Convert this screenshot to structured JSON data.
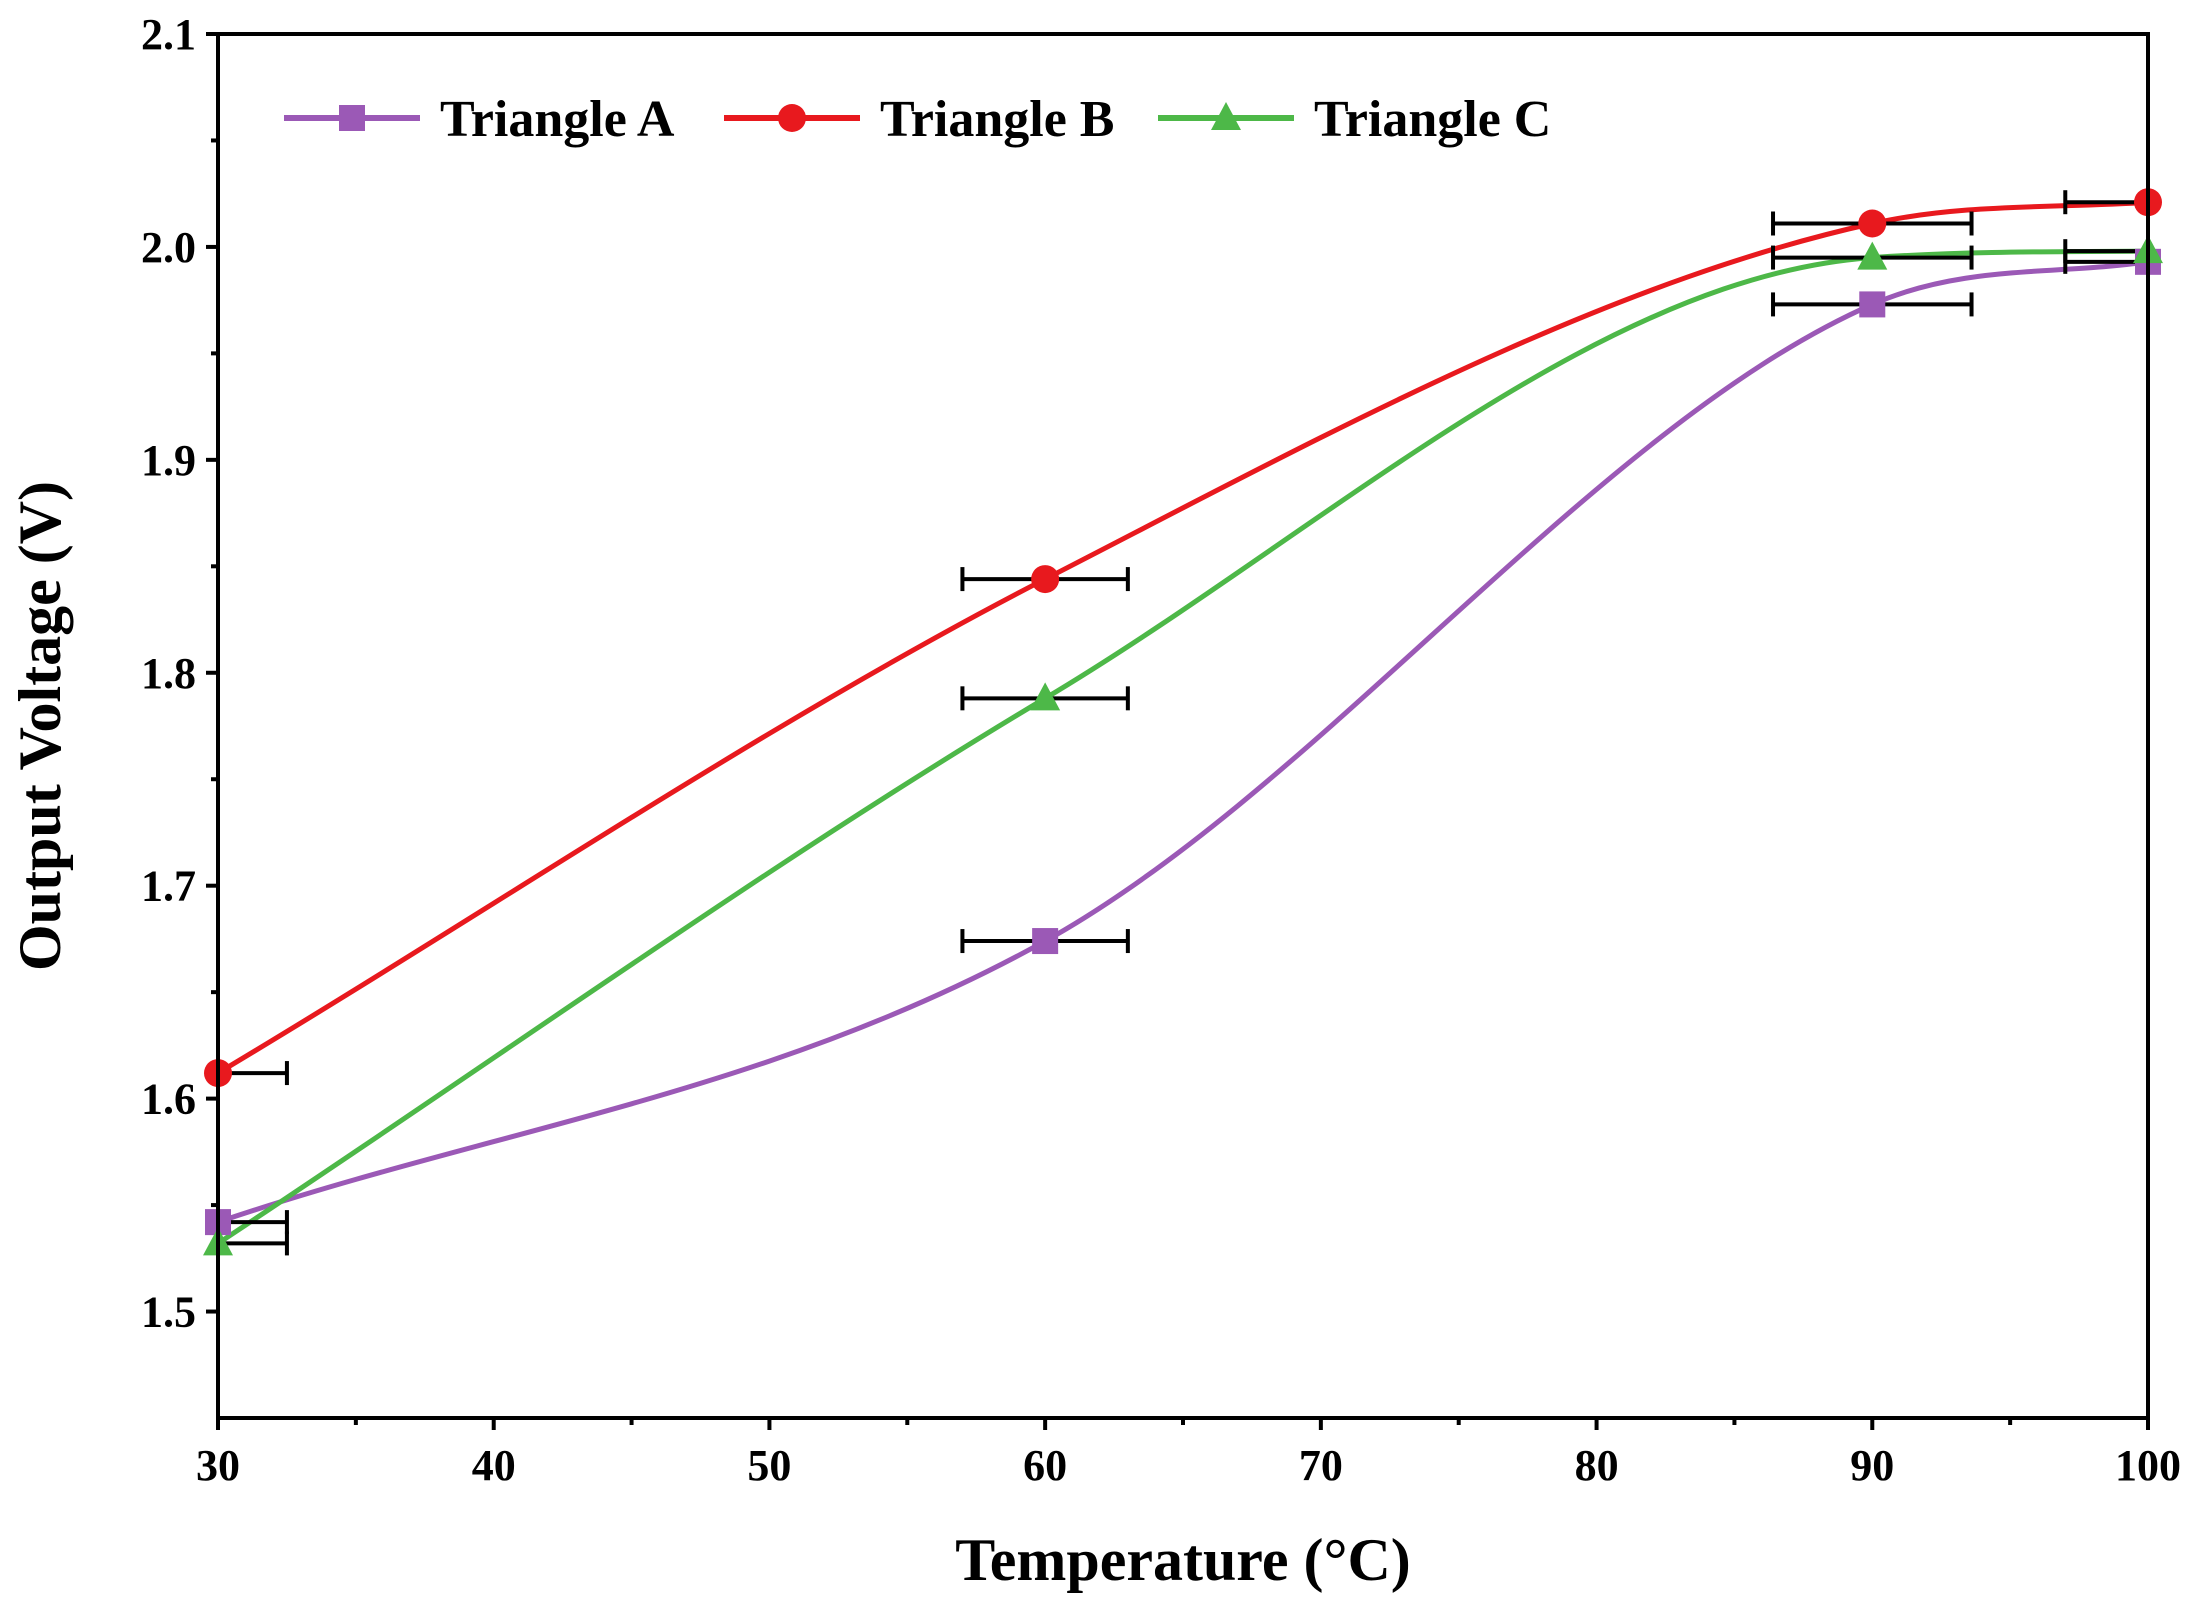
{
  "chart_data": {
    "type": "line",
    "title": "",
    "xlabel": "Temperature (°C)",
    "ylabel": "Output Voltage (V)",
    "xlim": [
      30,
      100
    ],
    "ylim": [
      1.45,
      2.1
    ],
    "xticks": [
      30,
      40,
      50,
      60,
      70,
      80,
      90,
      100
    ],
    "xtick_labels": [
      "30",
      "40",
      "50",
      "60",
      "70",
      "80",
      "90",
      "100"
    ],
    "yticks": [
      1.5,
      1.6,
      1.7,
      1.8,
      1.9,
      2.0,
      2.1
    ],
    "ytick_labels": [
      "1.5",
      "1.6",
      "1.7",
      "1.8",
      "1.9",
      "2.0",
      "2.1"
    ],
    "legend_position": "top-left",
    "x": [
      30,
      60,
      90,
      100
    ],
    "series": [
      {
        "name": "Triangle A",
        "marker": "square",
        "color": "#9B59B6",
        "values": [
          1.542,
          1.674,
          1.973,
          1.993
        ],
        "xerr": [
          2.5,
          3,
          3.6,
          3
        ]
      },
      {
        "name": "Triangle B",
        "marker": "circle",
        "color": "#E8191E",
        "values": [
          1.612,
          1.844,
          2.011,
          2.021
        ],
        "xerr": [
          2.5,
          3,
          3.6,
          3
        ]
      },
      {
        "name": "Triangle C",
        "marker": "triangle",
        "color": "#4DB848",
        "values": [
          1.532,
          1.788,
          1.995,
          1.998
        ],
        "xerr": [
          2.5,
          3,
          3.6,
          3
        ]
      }
    ]
  }
}
